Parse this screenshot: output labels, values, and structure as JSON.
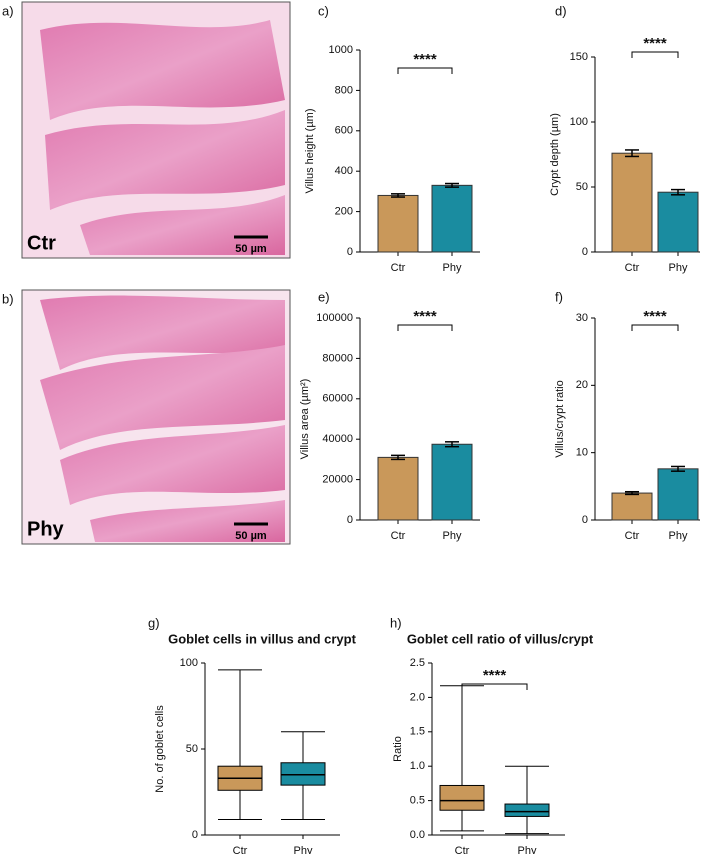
{
  "images": [
    {
      "panel": "a)",
      "label": "Ctr",
      "scale": "50 µm"
    },
    {
      "panel": "b)",
      "label": "Phy",
      "scale": "50 µm"
    }
  ],
  "chart_data": [
    {
      "type": "bar",
      "panel": "c)",
      "y_label": "Villus height (µm)",
      "categories": [
        "Ctr",
        "Phy"
      ],
      "values": [
        280,
        330
      ],
      "errors": [
        8,
        9
      ],
      "colors": [
        "#c9985a",
        "#1a8ca0"
      ],
      "ylim": [
        0,
        1000
      ],
      "yticks": [
        0,
        200,
        400,
        600,
        800,
        1000
      ],
      "annotation": "****"
    },
    {
      "type": "bar",
      "panel": "d)",
      "y_label": "Crypt depth (µm)",
      "categories": [
        "Ctr",
        "Phy"
      ],
      "values": [
        76,
        46
      ],
      "errors": [
        2.5,
        2
      ],
      "colors": [
        "#c9985a",
        "#1a8ca0"
      ],
      "ylim": [
        0,
        150
      ],
      "yticks": [
        0,
        50,
        100,
        150
      ],
      "annotation": "****"
    },
    {
      "type": "bar",
      "panel": "e)",
      "y_label": "Villus area (µm²)",
      "categories": [
        "Ctr",
        "Phy"
      ],
      "values": [
        31000,
        37500
      ],
      "errors": [
        1000,
        1200
      ],
      "colors": [
        "#c9985a",
        "#1a8ca0"
      ],
      "ylim": [
        0,
        100000
      ],
      "yticks": [
        0,
        20000,
        40000,
        60000,
        80000,
        100000
      ],
      "annotation": "****"
    },
    {
      "type": "bar",
      "panel": "f)",
      "y_label": "Villus/crypt ratio",
      "categories": [
        "Ctr",
        "Phy"
      ],
      "values": [
        4,
        7.6
      ],
      "errors": [
        0.2,
        0.35
      ],
      "colors": [
        "#c9985a",
        "#1a8ca0"
      ],
      "ylim": [
        0,
        30
      ],
      "yticks": [
        0,
        10,
        20,
        30
      ],
      "annotation": "****"
    },
    {
      "type": "box",
      "panel": "g)",
      "title": "Goblet cells in villus and crypt",
      "y_label": "No. of goblet cells",
      "categories": [
        "Ctr",
        "Phy"
      ],
      "boxes": [
        {
          "min": 9,
          "q1": 26,
          "median": 33,
          "q3": 40,
          "max": 96
        },
        {
          "min": 9,
          "q1": 29,
          "median": 35,
          "q3": 42,
          "max": 60
        }
      ],
      "colors": [
        "#c9985a",
        "#1a8ca0"
      ],
      "ylim": [
        0,
        100
      ],
      "yticks": [
        0,
        50,
        100
      ]
    },
    {
      "type": "box",
      "panel": "h)",
      "title": "Goblet cell ratio of villus/crypt",
      "y_label": "Ratio",
      "categories": [
        "Ctr",
        "Phy"
      ],
      "boxes": [
        {
          "min": 0.06,
          "q1": 0.36,
          "median": 0.5,
          "q3": 0.72,
          "max": 2.17
        },
        {
          "min": 0.02,
          "q1": 0.27,
          "median": 0.34,
          "q3": 0.45,
          "max": 1.0
        }
      ],
      "colors": [
        "#c9985a",
        "#1a8ca0"
      ],
      "ylim": [
        0,
        2.5
      ],
      "yticks": [
        {
          "value": 0,
          "label": "0.0"
        },
        0.5,
        {
          "value": 1,
          "label": "1.0"
        },
        1.5,
        {
          "value": 2,
          "label": "2.0"
        },
        2.5
      ],
      "annotation": "****"
    }
  ]
}
